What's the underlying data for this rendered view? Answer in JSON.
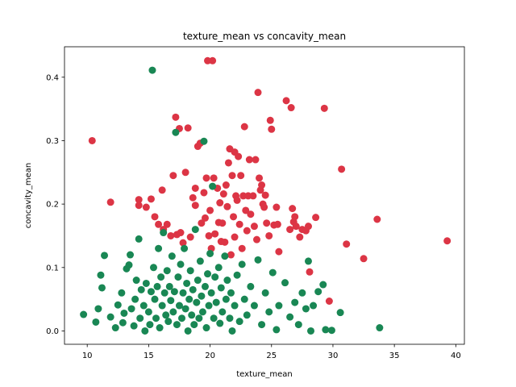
{
  "chart_data": {
    "type": "scatter",
    "title": "texture_mean vs concavity_mean",
    "xlabel": "texture_mean",
    "ylabel": "concavity_mean",
    "xlim": [
      8.15,
      40.7
    ],
    "ylim": [
      -0.021,
      0.448
    ],
    "xticks": [
      10,
      15,
      20,
      25,
      30,
      35,
      40
    ],
    "yticks": [
      0.0,
      0.1,
      0.2,
      0.3,
      0.4
    ],
    "xtick_labels": [
      "10",
      "15",
      "20",
      "25",
      "30",
      "35",
      "40"
    ],
    "ytick_labels": [
      "0.0",
      "0.1",
      "0.2",
      "0.3",
      "0.4"
    ],
    "grid": false,
    "legend": "none",
    "colors": {
      "malignant": "#dc3545",
      "benign": "#198754"
    },
    "series": [
      {
        "color": "#dc3545",
        "points": [
          [
            10.4,
            0.3
          ],
          [
            11.9,
            0.203
          ],
          [
            14.2,
            0.207
          ],
          [
            14.2,
            0.198
          ],
          [
            14.8,
            0.195
          ],
          [
            15.2,
            0.208
          ],
          [
            15.5,
            0.18
          ],
          [
            15.8,
            0.168
          ],
          [
            16.1,
            0.222
          ],
          [
            16.2,
            0.16
          ],
          [
            16.5,
            0.168
          ],
          [
            16.8,
            0.15
          ],
          [
            17.0,
            0.245
          ],
          [
            17.2,
            0.337
          ],
          [
            17.3,
            0.152
          ],
          [
            17.5,
            0.319
          ],
          [
            17.6,
            0.155
          ],
          [
            17.8,
            0.139
          ],
          [
            18.0,
            0.25
          ],
          [
            18.2,
            0.32
          ],
          [
            18.4,
            0.148
          ],
          [
            18.6,
            0.21
          ],
          [
            18.8,
            0.198
          ],
          [
            18.8,
            0.225
          ],
          [
            19.0,
            0.291
          ],
          [
            19.2,
            0.296
          ],
          [
            19.3,
            0.17
          ],
          [
            19.5,
            0.218
          ],
          [
            19.6,
            0.178
          ],
          [
            19.7,
            0.241
          ],
          [
            19.8,
            0.426
          ],
          [
            19.9,
            0.15
          ],
          [
            20.0,
            0.19
          ],
          [
            20.1,
            0.13
          ],
          [
            20.2,
            0.426
          ],
          [
            20.3,
            0.241
          ],
          [
            20.4,
            0.153
          ],
          [
            20.6,
            0.225
          ],
          [
            20.7,
            0.171
          ],
          [
            20.8,
            0.202
          ],
          [
            20.9,
            0.141
          ],
          [
            21.0,
            0.17
          ],
          [
            21.1,
            0.216
          ],
          [
            21.2,
            0.14
          ],
          [
            21.3,
            0.23
          ],
          [
            21.4,
            0.196
          ],
          [
            21.5,
            0.265
          ],
          [
            21.6,
            0.287
          ],
          [
            21.7,
            0.12
          ],
          [
            21.8,
            0.245
          ],
          [
            21.9,
            0.18
          ],
          [
            22.0,
            0.282
          ],
          [
            22.0,
            0.148
          ],
          [
            22.1,
            0.213
          ],
          [
            22.2,
            0.206
          ],
          [
            22.3,
            0.275
          ],
          [
            22.4,
            0.168
          ],
          [
            22.5,
            0.245
          ],
          [
            22.6,
            0.13
          ],
          [
            22.7,
            0.213
          ],
          [
            22.8,
            0.322
          ],
          [
            22.9,
            0.19
          ],
          [
            23.0,
            0.158
          ],
          [
            23.1,
            0.213
          ],
          [
            23.2,
            0.27
          ],
          [
            23.3,
            0.184
          ],
          [
            23.5,
            0.213
          ],
          [
            23.6,
            0.165
          ],
          [
            23.7,
            0.27
          ],
          [
            23.8,
            0.144
          ],
          [
            23.9,
            0.376
          ],
          [
            24.0,
            0.241
          ],
          [
            24.1,
            0.222
          ],
          [
            24.2,
            0.23
          ],
          [
            24.3,
            0.2
          ],
          [
            24.4,
            0.195
          ],
          [
            24.5,
            0.214
          ],
          [
            24.6,
            0.17
          ],
          [
            24.8,
            0.15
          ],
          [
            24.9,
            0.332
          ],
          [
            25.0,
            0.318
          ],
          [
            25.2,
            0.167
          ],
          [
            25.4,
            0.195
          ],
          [
            25.5,
            0.168
          ],
          [
            25.6,
            0.125
          ],
          [
            26.2,
            0.363
          ],
          [
            26.5,
            0.16
          ],
          [
            26.6,
            0.352
          ],
          [
            26.7,
            0.193
          ],
          [
            26.8,
            0.172
          ],
          [
            26.9,
            0.18
          ],
          [
            27.0,
            0.165
          ],
          [
            27.3,
            0.148
          ],
          [
            27.5,
            0.16
          ],
          [
            27.8,
            0.158
          ],
          [
            28.0,
            0.165
          ],
          [
            28.1,
            0.093
          ],
          [
            28.6,
            0.179
          ],
          [
            29.3,
            0.351
          ],
          [
            29.7,
            0.047
          ],
          [
            30.7,
            0.255
          ],
          [
            31.1,
            0.137
          ],
          [
            32.5,
            0.114
          ],
          [
            33.6,
            0.176
          ],
          [
            39.3,
            0.142
          ]
        ]
      },
      {
        "color": "#198754",
        "points": [
          [
            9.7,
            0.026
          ],
          [
            10.7,
            0.014
          ],
          [
            10.9,
            0.035
          ],
          [
            11.1,
            0.088
          ],
          [
            11.2,
            0.068
          ],
          [
            11.4,
            0.119
          ],
          [
            11.9,
            0.022
          ],
          [
            12.3,
            0.005
          ],
          [
            12.5,
            0.041
          ],
          [
            12.8,
            0.06
          ],
          [
            12.9,
            0.013
          ],
          [
            13.0,
            0.028
          ],
          [
            13.2,
            0.098
          ],
          [
            13.4,
            0.104
          ],
          [
            13.5,
            0.12
          ],
          [
            13.6,
            0.035
          ],
          [
            13.8,
            0.008
          ],
          [
            13.9,
            0.05
          ],
          [
            14.0,
            0.08
          ],
          [
            14.2,
            0.145
          ],
          [
            14.3,
            0.02
          ],
          [
            14.4,
            0.065
          ],
          [
            14.6,
            0.04
          ],
          [
            14.7,
            0.0
          ],
          [
            14.8,
            0.075
          ],
          [
            15.0,
            0.03
          ],
          [
            15.1,
            0.01
          ],
          [
            15.2,
            0.062
          ],
          [
            15.3,
            0.411
          ],
          [
            15.4,
            0.1
          ],
          [
            15.5,
            0.05
          ],
          [
            15.6,
            0.02
          ],
          [
            15.7,
            0.07
          ],
          [
            15.8,
            0.13
          ],
          [
            15.9,
            0.005
          ],
          [
            16.0,
            0.085
          ],
          [
            16.1,
            0.04
          ],
          [
            16.2,
            0.155
          ],
          [
            16.3,
            0.06
          ],
          [
            16.4,
            0.025
          ],
          [
            16.5,
            0.095
          ],
          [
            16.6,
            0.015
          ],
          [
            16.7,
            0.07
          ],
          [
            16.8,
            0.048
          ],
          [
            16.9,
            0.118
          ],
          [
            17.0,
            0.03
          ],
          [
            17.1,
            0.062
          ],
          [
            17.2,
            0.313
          ],
          [
            17.3,
            0.01
          ],
          [
            17.4,
            0.085
          ],
          [
            17.5,
            0.04
          ],
          [
            17.6,
            0.105
          ],
          [
            17.7,
            0.02
          ],
          [
            17.8,
            0.06
          ],
          [
            17.9,
            0.13
          ],
          [
            18.0,
            0.035
          ],
          [
            18.1,
            0.075
          ],
          [
            18.2,
            0.0
          ],
          [
            18.3,
            0.05
          ],
          [
            18.4,
            0.095
          ],
          [
            18.5,
            0.025
          ],
          [
            18.6,
            0.065
          ],
          [
            18.7,
            0.01
          ],
          [
            18.8,
            0.16
          ],
          [
            18.9,
            0.045
          ],
          [
            19.0,
            0.08
          ],
          [
            19.1,
            0.02
          ],
          [
            19.2,
            0.11
          ],
          [
            19.3,
            0.055
          ],
          [
            19.4,
            0.03
          ],
          [
            19.5,
            0.299
          ],
          [
            19.6,
            0.07
          ],
          [
            19.7,
            0.005
          ],
          [
            19.8,
            0.09
          ],
          [
            19.9,
            0.04
          ],
          [
            20.0,
            0.122
          ],
          [
            20.1,
            0.06
          ],
          [
            20.2,
            0.228
          ],
          [
            20.3,
            0.02
          ],
          [
            20.4,
            0.085
          ],
          [
            20.5,
            0.045
          ],
          [
            20.7,
            0.1
          ],
          [
            20.8,
            0.012
          ],
          [
            20.9,
            0.068
          ],
          [
            21.0,
            0.03
          ],
          [
            21.2,
            0.118
          ],
          [
            21.3,
            0.05
          ],
          [
            21.4,
            0.08
          ],
          [
            21.6,
            0.02
          ],
          [
            21.7,
            0.06
          ],
          [
            21.8,
            0.0
          ],
          [
            22.0,
            0.04
          ],
          [
            22.2,
            0.088
          ],
          [
            22.4,
            0.015
          ],
          [
            22.6,
            0.105
          ],
          [
            22.8,
            0.05
          ],
          [
            23.0,
            0.025
          ],
          [
            23.3,
            0.07
          ],
          [
            23.6,
            0.04
          ],
          [
            23.9,
            0.112
          ],
          [
            24.2,
            0.01
          ],
          [
            24.5,
            0.06
          ],
          [
            24.8,
            0.03
          ],
          [
            25.1,
            0.092
          ],
          [
            25.4,
            0.002
          ],
          [
            25.6,
            0.04
          ],
          [
            26.1,
            0.076
          ],
          [
            26.5,
            0.022
          ],
          [
            26.9,
            0.045
          ],
          [
            27.2,
            0.01
          ],
          [
            27.5,
            0.06
          ],
          [
            27.8,
            0.035
          ],
          [
            28.0,
            0.11
          ],
          [
            28.2,
            0.0
          ],
          [
            28.4,
            0.04
          ],
          [
            28.8,
            0.062
          ],
          [
            29.2,
            0.073
          ],
          [
            29.4,
            0.002
          ],
          [
            29.9,
            0.001
          ],
          [
            30.6,
            0.029
          ],
          [
            33.8,
            0.005
          ]
        ]
      }
    ]
  }
}
